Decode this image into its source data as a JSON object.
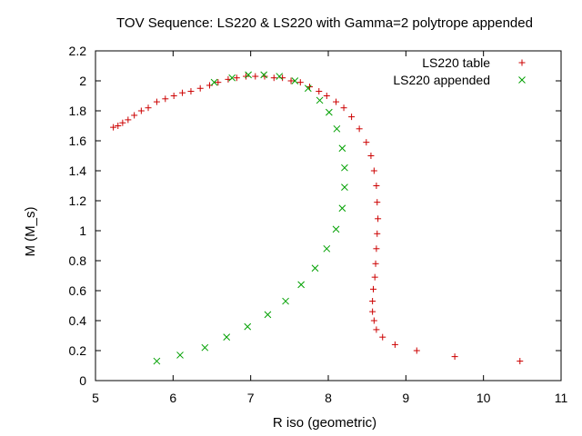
{
  "chart_data": {
    "type": "scatter",
    "title": "TOV Sequence: LS220 & LS220 with Gamma=2 polytrope appended",
    "xlabel": "R iso (geometric)",
    "ylabel": "M (M_s)",
    "xlim": [
      5,
      11
    ],
    "ylim": [
      0,
      2.2
    ],
    "xticks": [
      5,
      6,
      7,
      8,
      9,
      10,
      11
    ],
    "yticks": [
      0,
      0.2,
      0.4,
      0.6,
      0.8,
      1,
      1.2,
      1.4,
      1.6,
      1.8,
      2,
      2.2
    ],
    "xtick_labels": [
      "5",
      "6",
      "7",
      "8",
      "9",
      "10",
      "11"
    ],
    "ytick_labels": [
      "0",
      "0.2",
      "0.4",
      "0.6",
      "0.8",
      "1",
      "1.2",
      "1.4",
      "1.6",
      "1.8",
      "2",
      "2.2"
    ],
    "grid": false,
    "legend_position": "top-right",
    "series": [
      {
        "name": "LS220 table",
        "marker": "plus",
        "color": "#cc0000",
        "points": [
          [
            10.47,
            0.13
          ],
          [
            9.63,
            0.16
          ],
          [
            9.14,
            0.2
          ],
          [
            8.86,
            0.24
          ],
          [
            8.7,
            0.29
          ],
          [
            8.62,
            0.34
          ],
          [
            8.59,
            0.4
          ],
          [
            8.57,
            0.46
          ],
          [
            8.57,
            0.53
          ],
          [
            8.58,
            0.61
          ],
          [
            8.6,
            0.69
          ],
          [
            8.61,
            0.78
          ],
          [
            8.62,
            0.88
          ],
          [
            8.63,
            0.98
          ],
          [
            8.64,
            1.08
          ],
          [
            8.63,
            1.19
          ],
          [
            8.62,
            1.3
          ],
          [
            8.59,
            1.4
          ],
          [
            8.55,
            1.5
          ],
          [
            8.49,
            1.59
          ],
          [
            8.4,
            1.68
          ],
          [
            8.3,
            1.76
          ],
          [
            8.2,
            1.82
          ],
          [
            8.1,
            1.86
          ],
          [
            7.98,
            1.9
          ],
          [
            7.88,
            1.93
          ],
          [
            7.76,
            1.96
          ],
          [
            7.64,
            1.99
          ],
          [
            7.52,
            2.0
          ],
          [
            7.41,
            2.02
          ],
          [
            7.3,
            2.02
          ],
          [
            7.18,
            2.03
          ],
          [
            7.06,
            2.03
          ],
          [
            6.94,
            2.03
          ],
          [
            6.82,
            2.02
          ],
          [
            6.71,
            2.01
          ],
          [
            6.58,
            1.99
          ],
          [
            6.47,
            1.97
          ],
          [
            6.35,
            1.95
          ],
          [
            6.23,
            1.93
          ],
          [
            6.12,
            1.92
          ],
          [
            6.01,
            1.9
          ],
          [
            5.9,
            1.88
          ],
          [
            5.79,
            1.86
          ],
          [
            5.68,
            1.82
          ],
          [
            5.59,
            1.8
          ],
          [
            5.5,
            1.77
          ],
          [
            5.42,
            1.74
          ],
          [
            5.35,
            1.72
          ],
          [
            5.29,
            1.7
          ],
          [
            5.23,
            1.69
          ]
        ]
      },
      {
        "name": "LS220 appended",
        "marker": "cross",
        "color": "#00a000",
        "points": [
          [
            5.79,
            0.13
          ],
          [
            6.09,
            0.17
          ],
          [
            6.41,
            0.22
          ],
          [
            6.69,
            0.29
          ],
          [
            6.96,
            0.36
          ],
          [
            7.22,
            0.44
          ],
          [
            7.45,
            0.53
          ],
          [
            7.65,
            0.64
          ],
          [
            7.83,
            0.75
          ],
          [
            7.98,
            0.88
          ],
          [
            8.1,
            1.01
          ],
          [
            8.18,
            1.15
          ],
          [
            8.21,
            1.29
          ],
          [
            8.21,
            1.42
          ],
          [
            8.18,
            1.55
          ],
          [
            8.11,
            1.68
          ],
          [
            8.01,
            1.79
          ],
          [
            7.89,
            1.87
          ],
          [
            7.74,
            1.95
          ],
          [
            7.57,
            2.0
          ],
          [
            7.37,
            2.03
          ],
          [
            7.17,
            2.04
          ],
          [
            6.97,
            2.04
          ],
          [
            6.76,
            2.02
          ],
          [
            6.53,
            1.99
          ]
        ]
      }
    ]
  }
}
